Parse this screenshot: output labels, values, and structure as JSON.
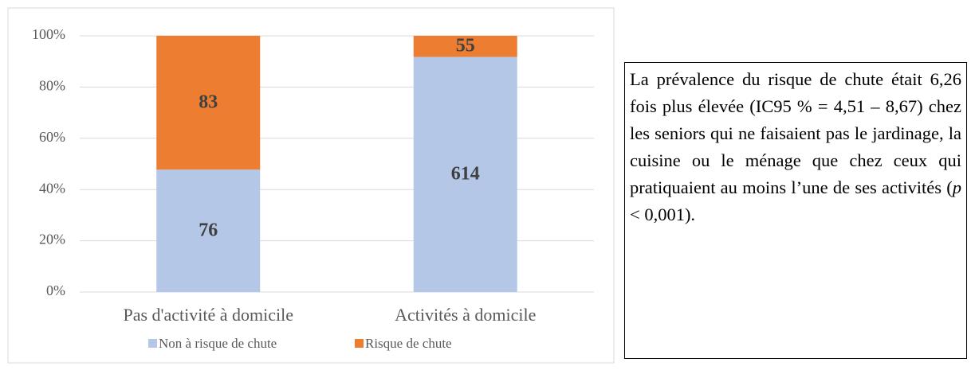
{
  "chart_data": {
    "type": "stacked_percent_bar",
    "categories": [
      "Pas d'activité à domicile",
      "Activités à domicile"
    ],
    "series": [
      {
        "name": "Non à risque de chute",
        "color": "#b4c7e7",
        "values": [
          76,
          614
        ]
      },
      {
        "name": "Risque de chute",
        "color": "#ed7d31",
        "values": [
          83,
          55
        ]
      }
    ],
    "ylim": [
      0,
      100
    ],
    "yticks": [
      {
        "value": 0,
        "label": "0%"
      },
      {
        "value": 20,
        "label": "20%"
      },
      {
        "value": 40,
        "label": "40%"
      },
      {
        "value": 60,
        "label": "60%"
      },
      {
        "value": 80,
        "label": "80%"
      },
      {
        "value": 100,
        "label": "100%"
      }
    ],
    "grid": true,
    "legend": "bottom"
  },
  "note": {
    "parts": [
      "La prévalence du risque de chute était 6,26 fois plus élevée (IC95 % = 4,51 – 8,67) chez les seniors qui ne faisaient pas le jardinage, la cuisine ou le ménage que chez ceux qui pratiquaient au moins l’une de ses activités (",
      "p",
      " < 0,001)."
    ]
  }
}
